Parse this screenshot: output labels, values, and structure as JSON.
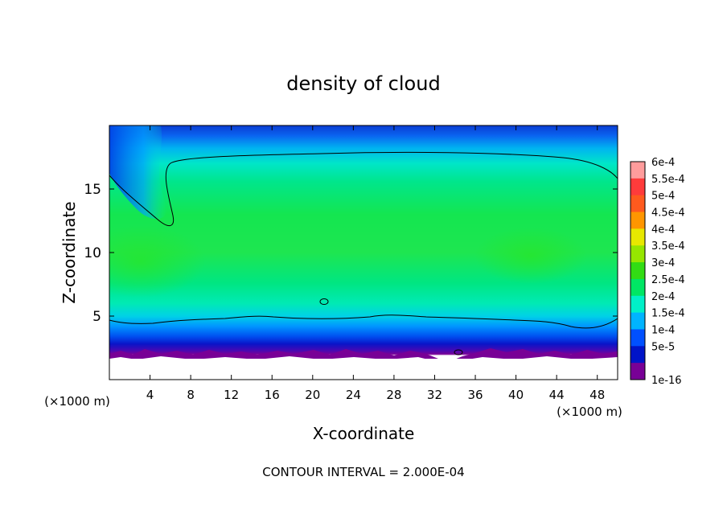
{
  "chart_data": {
    "type": "heatmap",
    "title": "density of cloud",
    "xlabel": "X-coordinate",
    "ylabel": "Z-coordinate",
    "x_unit": "(×1000 m)",
    "z_unit": "(×1000 m)",
    "xlim": [
      0,
      50
    ],
    "ylim": [
      0,
      20
    ],
    "x_ticks": [
      4,
      8,
      12,
      16,
      20,
      24,
      28,
      32,
      36,
      40,
      44,
      48
    ],
    "y_ticks": [
      5,
      10,
      15
    ],
    "footer": "CONTOUR INTERVAL = 2.000E-04",
    "colorbar": {
      "labels": [
        "6e-4",
        "5.5e-4",
        "5e-4",
        "4.5e-4",
        "4e-4",
        "3.5e-4",
        "3e-4",
        "2.5e-4",
        "2e-4",
        "1.5e-4",
        "1e-4",
        "5e-5",
        "1e-16"
      ],
      "values": [
        0.0006,
        0.00055,
        0.0005,
        0.00045,
        0.0004,
        0.00035,
        0.0003,
        0.00025,
        0.0002,
        0.00015,
        0.0001,
        5e-05,
        1e-16
      ],
      "colors": [
        "#ff9c9c",
        "#ff3b3b",
        "#ff5a1e",
        "#ff9600",
        "#e8e800",
        "#96e600",
        "#32dc14",
        "#00e664",
        "#00f0c8",
        "#00b4ff",
        "#0050ff",
        "#0014c8",
        "#780096"
      ]
    },
    "field_summary": {
      "cloud_base_km": 2,
      "cloud_top_km": 19.8,
      "contour_2e-4_lower_boundary_km": 4.6,
      "contour_2e-4_upper_boundary_km": 17.5
    }
  }
}
